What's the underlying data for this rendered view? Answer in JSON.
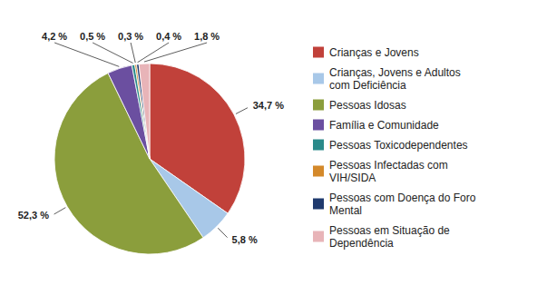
{
  "chart_data": {
    "type": "pie",
    "categories": [
      "Crianças e Jovens",
      "Crianças, Jovens e Adultos\ncom Deficiência",
      "Pessoas Idosas",
      "Família e Comunidade",
      "Pessoas Toxicodependentes",
      "Pessoas Infectadas com\nVIH/SIDA",
      "Pessoas com Doença do Foro\nMental",
      "Pessoas em Situação de\nDependência"
    ],
    "values": [
      34.7,
      5.8,
      52.3,
      4.2,
      0.5,
      0.3,
      0.4,
      1.8
    ],
    "value_labels": [
      "34,7 %",
      "5,8 %",
      "52,3 %",
      "4,2 %",
      "0,5 %",
      "0,3 %",
      "0,4 %",
      "1,8 %"
    ],
    "colors": [
      "#C1413A",
      "#A8C8E8",
      "#8B9E3C",
      "#6B4FA0",
      "#2A8A8A",
      "#D4892A",
      "#1F3A6E",
      "#E8B4B8"
    ],
    "data_labels": true,
    "legend": "right"
  }
}
